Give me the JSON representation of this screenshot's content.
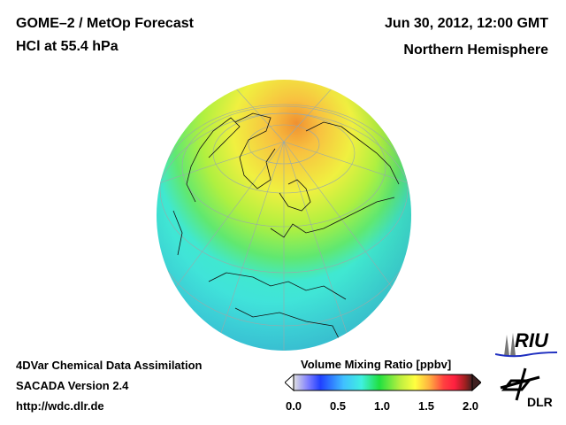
{
  "header": {
    "title": "GOME–2 / MetOp Forecast",
    "species": "HCl at 55.4 hPa",
    "datetime": "Jun 30, 2012, 12:00 GMT",
    "region": "Northern Hemisphere"
  },
  "footer": {
    "line1": "4DVar Chemical Data Assimilation",
    "line2": "SACADA Version 2.4",
    "link": "http://wdc.dlr.de"
  },
  "colorbar": {
    "title": "Volume Mixing Ratio [ppbv]",
    "ticks": [
      "0.0",
      "0.5",
      "1.0",
      "1.5",
      "2.0"
    ],
    "range": [
      0.0,
      2.0
    ],
    "colors": [
      "#e0e0e0",
      "#8080ff",
      "#2040ff",
      "#40c0ff",
      "#40f0e0",
      "#20e040",
      "#c0f040",
      "#ffff40",
      "#ffb040",
      "#ff4040",
      "#ff2040",
      "#a02020",
      "#402020"
    ]
  },
  "logos": {
    "riu": "RIU",
    "dlr": "DLR"
  }
}
